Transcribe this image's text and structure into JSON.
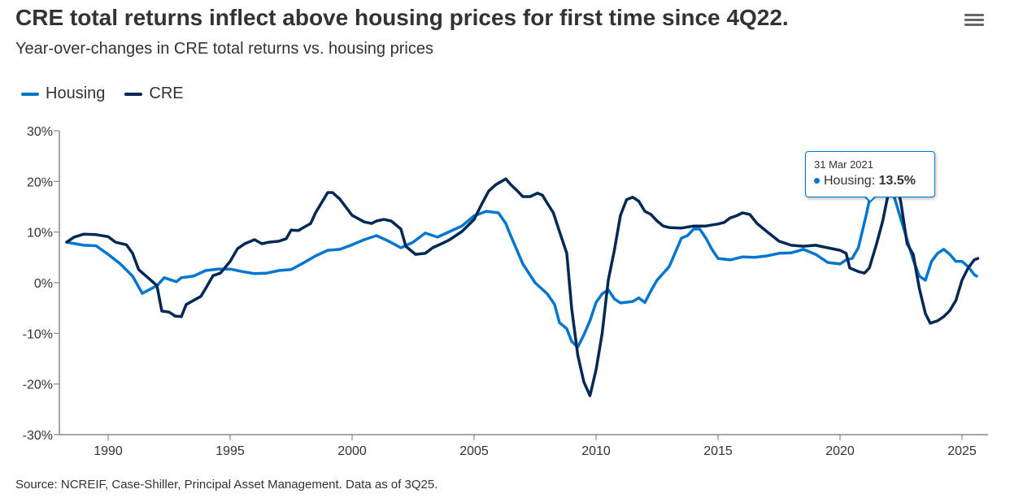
{
  "chart_data": {
    "type": "line",
    "title": "CRE total returns inflect above housing prices for first time since 4Q22.",
    "subtitle": "Year-over-changes in CRE total returns vs. housing prices",
    "xlim": [
      1988,
      2026
    ],
    "ylim": [
      -30,
      30
    ],
    "x_ticks": [
      "1990",
      "1995",
      "2000",
      "2005",
      "2010",
      "2015",
      "2020",
      "2025"
    ],
    "y_ticks": [
      "30%",
      "20%",
      "10%",
      "0%",
      "-10%",
      "-20%",
      "-30%"
    ],
    "grid": false,
    "legend_placement": "top-left",
    "series": [
      {
        "name": "Housing",
        "color": "#0076CF",
        "points": [
          [
            1988.3,
            8.0
          ],
          [
            1989,
            7.4
          ],
          [
            1989.5,
            7.3
          ],
          [
            1990,
            5.6
          ],
          [
            1990.5,
            3.7
          ],
          [
            1991,
            1.3
          ],
          [
            1991.4,
            -2.1
          ],
          [
            1992,
            -0.6
          ],
          [
            1992.3,
            1.0
          ],
          [
            1992.8,
            0.2
          ],
          [
            1993,
            1.0
          ],
          [
            1993.5,
            1.3
          ],
          [
            1994,
            2.4
          ],
          [
            1994.5,
            2.7
          ],
          [
            1995,
            2.7
          ],
          [
            1995.5,
            2.2
          ],
          [
            1996,
            1.8
          ],
          [
            1996.5,
            1.9
          ],
          [
            1997,
            2.4
          ],
          [
            1997.5,
            2.6
          ],
          [
            1998,
            3.9
          ],
          [
            1998.5,
            5.3
          ],
          [
            1999,
            6.4
          ],
          [
            1999.5,
            6.6
          ],
          [
            2000,
            7.5
          ],
          [
            2000.5,
            8.5
          ],
          [
            2001,
            9.3
          ],
          [
            2001.5,
            8.2
          ],
          [
            2002,
            6.9
          ],
          [
            2002.5,
            8.0
          ],
          [
            2003,
            9.8
          ],
          [
            2003.5,
            9.0
          ],
          [
            2004,
            10.1
          ],
          [
            2004.5,
            11.2
          ],
          [
            2005,
            13.2
          ],
          [
            2005.5,
            14.1
          ],
          [
            2006,
            13.8
          ],
          [
            2006.3,
            11.7
          ],
          [
            2006.5,
            9.3
          ],
          [
            2007,
            3.7
          ],
          [
            2007.5,
            0
          ],
          [
            2008,
            -2.2
          ],
          [
            2008.3,
            -4.3
          ],
          [
            2008.5,
            -7.9
          ],
          [
            2008.8,
            -9.1
          ],
          [
            2009,
            -11.6
          ],
          [
            2009.25,
            -12.7
          ],
          [
            2009.5,
            -10.3
          ],
          [
            2009.75,
            -7.5
          ],
          [
            2010,
            -3.9
          ],
          [
            2010.25,
            -2.2
          ],
          [
            2010.5,
            -1.4
          ],
          [
            2010.75,
            -3.2
          ],
          [
            2011,
            -4.0
          ],
          [
            2011.5,
            -3.7
          ],
          [
            2011.75,
            -3.0
          ],
          [
            2012,
            -3.9
          ],
          [
            2012.25,
            -1.6
          ],
          [
            2012.5,
            0.5
          ],
          [
            2013,
            3.2
          ],
          [
            2013.5,
            8.8
          ],
          [
            2013.75,
            9.3
          ],
          [
            2014,
            10.6
          ],
          [
            2014.25,
            10.6
          ],
          [
            2014.5,
            8.8
          ],
          [
            2014.75,
            6.6
          ],
          [
            2015,
            4.8
          ],
          [
            2015.5,
            4.5
          ],
          [
            2016,
            5.1
          ],
          [
            2016.5,
            5.0
          ],
          [
            2017,
            5.3
          ],
          [
            2017.5,
            5.8
          ],
          [
            2018,
            5.9
          ],
          [
            2018.5,
            6.6
          ],
          [
            2019,
            5.6
          ],
          [
            2019.5,
            4.0
          ],
          [
            2020,
            3.7
          ],
          [
            2020.25,
            4.5
          ],
          [
            2020.5,
            4.8
          ],
          [
            2020.75,
            6.9
          ],
          [
            2021.08,
            13.5
          ],
          [
            2021.25,
            17.3
          ],
          [
            2021.5,
            19.0
          ],
          [
            2022,
            20.4
          ],
          [
            2022.25,
            16.5
          ],
          [
            2022.5,
            12.5
          ],
          [
            2022.75,
            8.5
          ],
          [
            2023,
            4.5
          ],
          [
            2023.25,
            1.3
          ],
          [
            2023.5,
            0.5
          ],
          [
            2023.75,
            4.2
          ],
          [
            2024,
            5.8
          ],
          [
            2024.25,
            6.6
          ],
          [
            2024.5,
            5.6
          ],
          [
            2024.75,
            4.2
          ],
          [
            2025,
            4.2
          ],
          [
            2025.25,
            3.2
          ],
          [
            2025.5,
            1.6
          ],
          [
            2025.6,
            1.3
          ]
        ]
      },
      {
        "name": "CRE",
        "color": "#002855",
        "points": [
          [
            1988.3,
            8.0
          ],
          [
            1988.6,
            9.0
          ],
          [
            1989,
            9.6
          ],
          [
            1989.5,
            9.5
          ],
          [
            1990,
            9.1
          ],
          [
            1990.3,
            8.0
          ],
          [
            1990.75,
            7.5
          ],
          [
            1991,
            5.8
          ],
          [
            1991.25,
            2.6
          ],
          [
            1991.75,
            0.5
          ],
          [
            1992,
            -0.6
          ],
          [
            1992.2,
            -5.6
          ],
          [
            1992.5,
            -5.8
          ],
          [
            1992.75,
            -6.6
          ],
          [
            1993,
            -6.7
          ],
          [
            1993.2,
            -4.3
          ],
          [
            1993.5,
            -3.5
          ],
          [
            1993.8,
            -2.7
          ],
          [
            1994,
            -1.1
          ],
          [
            1994.3,
            1.4
          ],
          [
            1994.6,
            1.9
          ],
          [
            1995,
            4.2
          ],
          [
            1995.3,
            6.7
          ],
          [
            1995.6,
            7.7
          ],
          [
            1996,
            8.5
          ],
          [
            1996.3,
            7.7
          ],
          [
            1996.6,
            8.0
          ],
          [
            1997,
            8.2
          ],
          [
            1997.3,
            8.7
          ],
          [
            1997.5,
            10.4
          ],
          [
            1997.8,
            10.3
          ],
          [
            1998,
            10.9
          ],
          [
            1998.3,
            11.7
          ],
          [
            1998.5,
            13.8
          ],
          [
            1998.8,
            16.2
          ],
          [
            1999,
            17.8
          ],
          [
            1999.2,
            17.8
          ],
          [
            1999.5,
            16.5
          ],
          [
            2000,
            13.3
          ],
          [
            2000.5,
            12.0
          ],
          [
            2000.8,
            11.7
          ],
          [
            2001,
            12.2
          ],
          [
            2001.3,
            12.5
          ],
          [
            2001.6,
            12.2
          ],
          [
            2002,
            10.6
          ],
          [
            2002.2,
            7.2
          ],
          [
            2002.6,
            5.6
          ],
          [
            2003,
            5.8
          ],
          [
            2003.3,
            6.9
          ],
          [
            2003.8,
            8.0
          ],
          [
            2004,
            8.5
          ],
          [
            2004.5,
            10.1
          ],
          [
            2005,
            12.5
          ],
          [
            2005.3,
            15.4
          ],
          [
            2005.6,
            18.1
          ],
          [
            2005.9,
            19.4
          ],
          [
            2006.3,
            20.5
          ],
          [
            2006.5,
            19.4
          ],
          [
            2006.8,
            18.0
          ],
          [
            2007,
            17.0
          ],
          [
            2007.3,
            17.0
          ],
          [
            2007.6,
            17.7
          ],
          [
            2007.8,
            17.3
          ],
          [
            2008,
            15.7
          ],
          [
            2008.25,
            13.8
          ],
          [
            2008.5,
            10.1
          ],
          [
            2008.8,
            5.8
          ],
          [
            2009,
            -5.1
          ],
          [
            2009.25,
            -14.3
          ],
          [
            2009.5,
            -19.6
          ],
          [
            2009.75,
            -22.3
          ],
          [
            2010,
            -17.2
          ],
          [
            2010.25,
            -10.0
          ],
          [
            2010.5,
            0.5
          ],
          [
            2010.75,
            6.4
          ],
          [
            2011,
            13.3
          ],
          [
            2011.25,
            16.4
          ],
          [
            2011.5,
            16.9
          ],
          [
            2011.75,
            16.1
          ],
          [
            2012,
            14.1
          ],
          [
            2012.25,
            13.5
          ],
          [
            2012.5,
            12.2
          ],
          [
            2012.75,
            11.2
          ],
          [
            2013,
            10.9
          ],
          [
            2013.5,
            10.8
          ],
          [
            2014,
            11.2
          ],
          [
            2014.5,
            11.2
          ],
          [
            2015,
            11.6
          ],
          [
            2015.25,
            11.9
          ],
          [
            2015.5,
            12.8
          ],
          [
            2015.75,
            13.2
          ],
          [
            2016,
            13.8
          ],
          [
            2016.3,
            13.5
          ],
          [
            2016.6,
            11.7
          ],
          [
            2017,
            10.1
          ],
          [
            2017.5,
            8.2
          ],
          [
            2018,
            7.4
          ],
          [
            2018.5,
            7.2
          ],
          [
            2019,
            7.4
          ],
          [
            2019.5,
            6.9
          ],
          [
            2020,
            6.4
          ],
          [
            2020.25,
            5.8
          ],
          [
            2020.4,
            2.9
          ],
          [
            2020.75,
            2.2
          ],
          [
            2021,
            1.9
          ],
          [
            2021.2,
            2.9
          ],
          [
            2021.5,
            7.7
          ],
          [
            2021.75,
            12.2
          ],
          [
            2022,
            18.1
          ],
          [
            2022.25,
            21.5
          ],
          [
            2022.5,
            15.7
          ],
          [
            2022.75,
            7.7
          ],
          [
            2023,
            5.6
          ],
          [
            2023.25,
            -1.1
          ],
          [
            2023.5,
            -6.1
          ],
          [
            2023.7,
            -8.0
          ],
          [
            2024,
            -7.5
          ],
          [
            2024.25,
            -6.7
          ],
          [
            2024.5,
            -5.5
          ],
          [
            2024.75,
            -3.5
          ],
          [
            2025,
            0.5
          ],
          [
            2025.25,
            2.9
          ],
          [
            2025.5,
            4.5
          ],
          [
            2025.65,
            4.8
          ]
        ]
      }
    ],
    "tooltip": {
      "date": "31 Mar 2021",
      "series": "Housing",
      "label": "Housing: ",
      "value": "13.5%"
    }
  },
  "source": "Source: NCREIF, Case-Shiller, Principal Asset Management. Data as of 3Q25.",
  "icons": {
    "menu": "hamburger-menu-icon"
  }
}
